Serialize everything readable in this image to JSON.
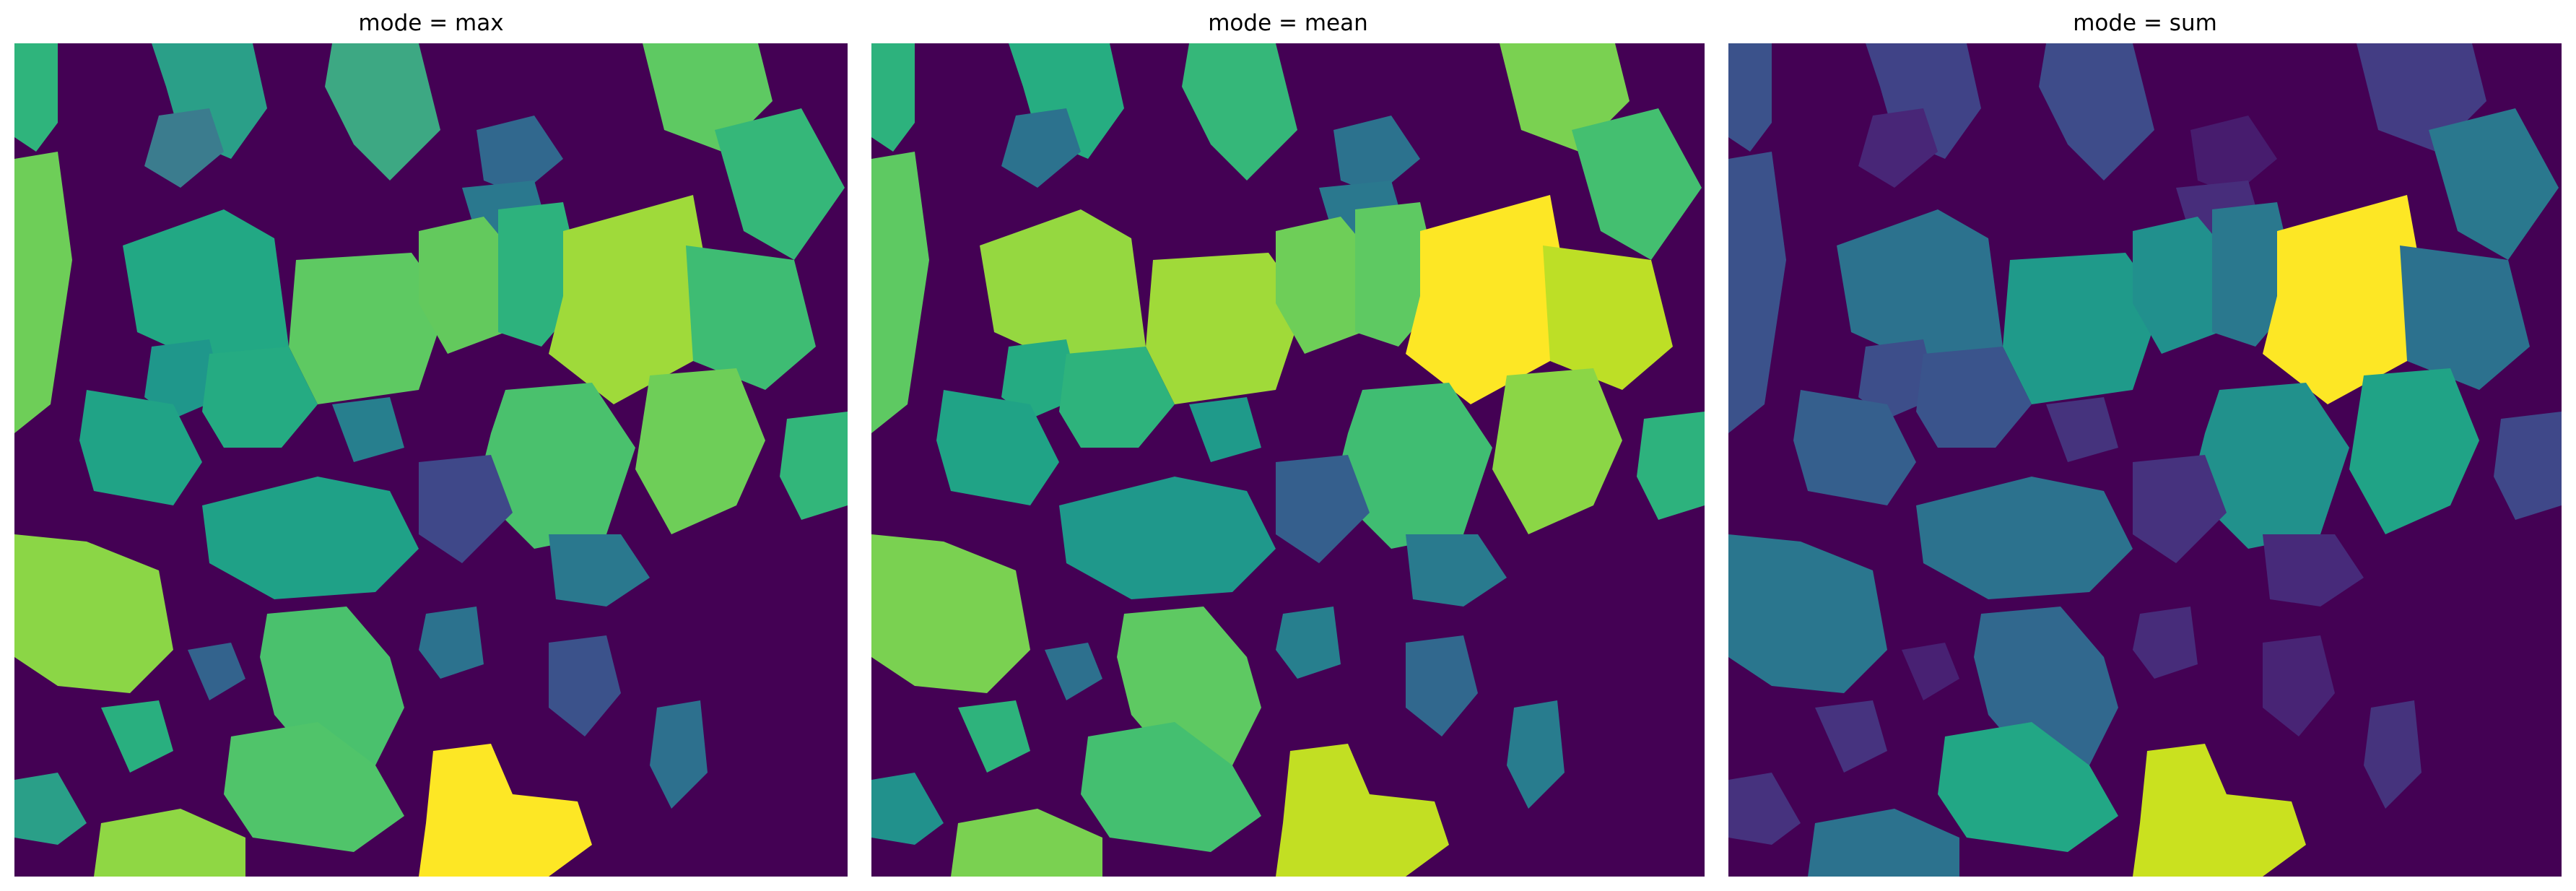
{
  "colormap": {
    "name": "viridis",
    "background": "#440154",
    "stops": [
      "#440154",
      "#3b528b",
      "#21918c",
      "#5ec962",
      "#fde725"
    ]
  },
  "panels": [
    {
      "title": "mode = max"
    },
    {
      "title": "mode = mean"
    },
    {
      "title": "mode = sum"
    }
  ]
}
